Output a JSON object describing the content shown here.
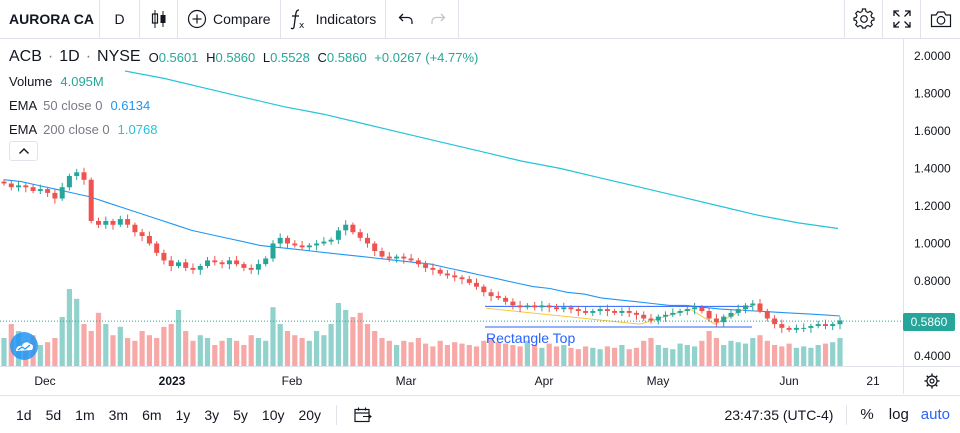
{
  "toolbar": {
    "symbol": "AURORA CA",
    "interval": "D",
    "compare_label": "Compare",
    "indicators_label": "Indicators",
    "icons": [
      "candles-icon",
      "plus-circle-icon",
      "fx-icon",
      "undo-icon",
      "redo-icon",
      "gear-icon",
      "fullscreen-icon",
      "camera-icon"
    ]
  },
  "legend": {
    "ticker": "ACB",
    "interval": "1D",
    "exchange": "NYSE",
    "open_key": "O",
    "open": "0.5601",
    "high_key": "H",
    "high": "0.5860",
    "low_key": "L",
    "low": "0.5528",
    "close_key": "C",
    "close": "0.5860",
    "change": "+0.0267 (+4.77%)",
    "volume_label": "Volume",
    "volume_value": "4.095M",
    "ema50_label": "EMA",
    "ema50_params": "50 close 0",
    "ema50_value": "0.6134",
    "ema200_label": "EMA",
    "ema200_params": "200 close 0",
    "ema200_value": "1.0768"
  },
  "annotation": {
    "label": "Rectangle Top"
  },
  "price_tag": "0.5860",
  "colors": {
    "up": "#26a69a",
    "down": "#ef5350",
    "ema50": "#2196f3",
    "ema200": "#22c5d6",
    "accent": "#2962ff",
    "pattern": "#2962ff"
  },
  "chart_data": {
    "type": "candlestick",
    "y_ticks": [
      "2.0000",
      "1.8000",
      "1.6000",
      "1.4000",
      "1.2000",
      "1.0000",
      "0.8000",
      "0.6000",
      "0.4000"
    ],
    "ylim": [
      0.4,
      2.0
    ],
    "x_ticks": [
      "Dec",
      "2023",
      "Feb",
      "Mar",
      "Apr",
      "May",
      "Jun",
      "21"
    ],
    "close_path": [
      1.32,
      1.3,
      1.31,
      1.3,
      1.28,
      1.29,
      1.27,
      1.24,
      1.3,
      1.36,
      1.38,
      1.34,
      1.12,
      1.1,
      1.12,
      1.1,
      1.13,
      1.1,
      1.06,
      1.04,
      1.0,
      0.95,
      0.91,
      0.88,
      0.9,
      0.87,
      0.86,
      0.88,
      0.91,
      0.9,
      0.89,
      0.91,
      0.89,
      0.87,
      0.86,
      0.89,
      0.92,
      1.0,
      1.03,
      1.0,
      0.99,
      0.98,
      0.99,
      1.0,
      1.01,
      1.02,
      1.07,
      1.1,
      1.06,
      1.03,
      1.0,
      0.96,
      0.93,
      0.92,
      0.93,
      0.92,
      0.91,
      0.89,
      0.87,
      0.86,
      0.84,
      0.83,
      0.82,
      0.81,
      0.79,
      0.77,
      0.74,
      0.72,
      0.71,
      0.69,
      0.67,
      0.66,
      0.67,
      0.66,
      0.67,
      0.66,
      0.65,
      0.66,
      0.65,
      0.64,
      0.63,
      0.64,
      0.65,
      0.64,
      0.63,
      0.64,
      0.63,
      0.62,
      0.6,
      0.59,
      0.61,
      0.62,
      0.63,
      0.64,
      0.65,
      0.66,
      0.64,
      0.6,
      0.58,
      0.61,
      0.63,
      0.65,
      0.67,
      0.68,
      0.64,
      0.6,
      0.57,
      0.55,
      0.54,
      0.55,
      0.55,
      0.56,
      0.57,
      0.56,
      0.57,
      0.59
    ],
    "ema50_path": [
      1.34,
      1.33,
      1.31,
      1.29,
      1.27,
      1.25,
      1.22,
      1.19,
      1.16,
      1.13,
      1.1,
      1.07,
      1.05,
      1.03,
      1.01,
      0.99,
      0.98,
      0.97,
      0.96,
      0.95,
      0.94,
      0.93,
      0.92,
      0.91,
      0.9,
      0.89,
      0.87,
      0.85,
      0.83,
      0.81,
      0.79,
      0.77,
      0.76,
      0.74,
      0.73,
      0.71,
      0.7,
      0.69,
      0.68,
      0.67,
      0.67,
      0.66,
      0.65,
      0.645,
      0.64,
      0.635,
      0.63,
      0.625,
      0.62,
      0.6134
    ],
    "ema200_path": [
      1.92,
      1.88,
      1.83,
      1.78,
      1.73,
      1.69,
      1.64,
      1.59,
      1.54,
      1.49,
      1.44,
      1.4,
      1.35,
      1.3,
      1.25,
      1.2,
      1.15,
      1.11,
      1.08
    ],
    "volume_path": [
      0.2,
      0.3,
      0.25,
      0.18,
      0.22,
      0.15,
      0.17,
      0.2,
      0.35,
      0.55,
      0.48,
      0.3,
      0.25,
      0.38,
      0.3,
      0.22,
      0.28,
      0.2,
      0.18,
      0.25,
      0.22,
      0.2,
      0.28,
      0.3,
      0.4,
      0.25,
      0.18,
      0.22,
      0.2,
      0.15,
      0.18,
      0.2,
      0.18,
      0.15,
      0.22,
      0.2,
      0.18,
      0.42,
      0.3,
      0.25,
      0.22,
      0.2,
      0.18,
      0.25,
      0.22,
      0.3,
      0.45,
      0.4,
      0.35,
      0.38,
      0.3,
      0.25,
      0.2,
      0.18,
      0.15,
      0.18,
      0.17,
      0.2,
      0.16,
      0.14,
      0.18,
      0.15,
      0.17,
      0.16,
      0.15,
      0.14,
      0.18,
      0.2,
      0.17,
      0.16,
      0.15,
      0.14,
      0.18,
      0.15,
      0.13,
      0.16,
      0.14,
      0.15,
      0.13,
      0.12,
      0.14,
      0.13,
      0.12,
      0.14,
      0.13,
      0.15,
      0.12,
      0.13,
      0.18,
      0.2,
      0.15,
      0.13,
      0.12,
      0.16,
      0.15,
      0.14,
      0.18,
      0.25,
      0.2,
      0.15,
      0.18,
      0.17,
      0.16,
      0.2,
      0.22,
      0.18,
      0.15,
      0.14,
      0.16,
      0.13,
      0.14,
      0.13,
      0.15,
      0.16,
      0.17,
      0.2
    ]
  },
  "bottombar": {
    "ranges": [
      "1d",
      "5d",
      "1m",
      "3m",
      "6m",
      "1y",
      "3y",
      "5y",
      "10y",
      "20y"
    ],
    "time": "23:47:35 (UTC-4)",
    "percent": "%",
    "log": "log",
    "auto": "auto"
  }
}
